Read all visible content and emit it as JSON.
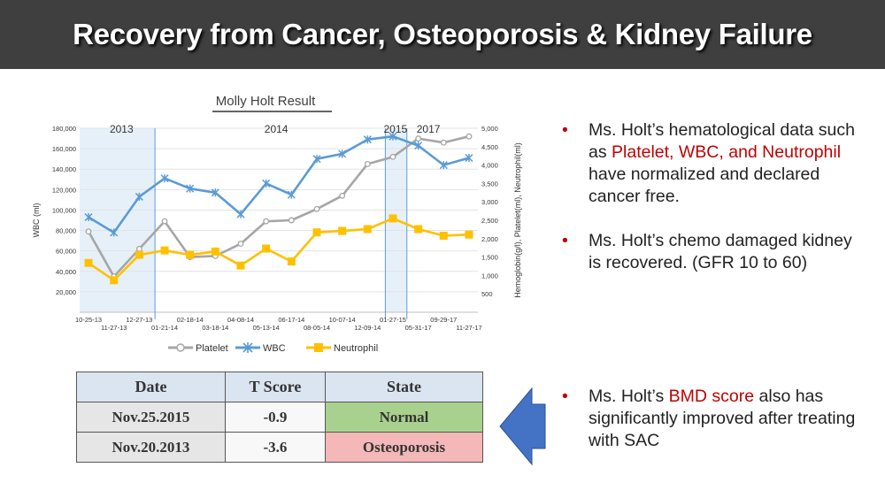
{
  "slide": {
    "title": "Recovery from Cancer, Osteoporosis & Kidney Failure"
  },
  "chart_data": {
    "type": "line",
    "title": "Molly Holt  Result",
    "ylabel": "WBC (ml)",
    "y2label": "Hemoglobin(g/l), Platelet(ml), Neutrophil(ml)",
    "ylim": [
      0,
      180000
    ],
    "y2lim": [
      0,
      5000
    ],
    "yticks": [
      "20,000",
      "40,000",
      "60,000",
      "80,000",
      "100,000",
      "120,000",
      "140,000",
      "160,000",
      "180,000"
    ],
    "y2ticks": [
      "500",
      "1,000",
      "1,500",
      "2,000",
      "2,500",
      "3,000",
      "3,500",
      "4,000",
      "4,500",
      "5,000"
    ],
    "year_labels": [
      "2013",
      "2014",
      "2015",
      "2017"
    ],
    "x": [
      "10-25-13",
      "11-27-13",
      "12-27-13",
      "01-21-14",
      "02-18-14",
      "03-18-14",
      "04-08-14",
      "05-13-14",
      "06-17-14",
      "08-05-14",
      "10-07-14",
      "12-09-14",
      "01-27-15",
      "05-31-17",
      "09-29-17",
      "11-27-17"
    ],
    "series": [
      {
        "name": "Platelet",
        "color": "#a6a6a6",
        "marker": "circle",
        "values": [
          79000,
          35000,
          62000,
          89000,
          54000,
          55000,
          67000,
          89000,
          90000,
          101000,
          114000,
          145000,
          152000,
          170000,
          166000,
          172000
        ]
      },
      {
        "name": "WBC",
        "color": "#5b9bd5",
        "marker": "star",
        "values": [
          93000,
          78000,
          113000,
          131000,
          121000,
          117000,
          96000,
          126000,
          115000,
          150000,
          155000,
          169000,
          172000,
          163000,
          144000,
          151000
        ]
      },
      {
        "name": "Neutrophil",
        "color": "#ffc000",
        "marker": "square",
        "values": [
          1340,
          870,
          1560,
          1680,
          1560,
          1650,
          1270,
          1730,
          1380,
          2170,
          2210,
          2260,
          2550,
          2260,
          2080,
          2110
        ],
        "axis": "y2"
      }
    ]
  },
  "bmd_table": {
    "headers": [
      "Date",
      "T Score",
      "State"
    ],
    "rows": [
      {
        "date": "Nov.25.2015",
        "score": "-0.9",
        "state": "Normal"
      },
      {
        "date": "Nov.20.2013",
        "score": "-3.6",
        "state": "Osteoporosis"
      }
    ]
  },
  "colors": {
    "title_bar": "#3f3f3f",
    "accent_red": "#c00000",
    "arrow_blue": "#4472c4",
    "normal_green": "#a9d18e",
    "osteo_pink": "#f4b8b8"
  },
  "bullets": {
    "b1": {
      "pre": "Ms. Holt’s hematological data such as ",
      "highlight": "Platelet, WBC, and Neutrophil",
      "post": " have normalized and declared cancer free."
    },
    "b2": {
      "text": "Ms. Holt’s chemo damaged kidney is recovered. (GFR 10 to 60)"
    },
    "b3": {
      "pre": "Ms. Holt’s ",
      "highlight": "BMD score",
      "post": " also has significantly improved after treating with SAC"
    }
  }
}
